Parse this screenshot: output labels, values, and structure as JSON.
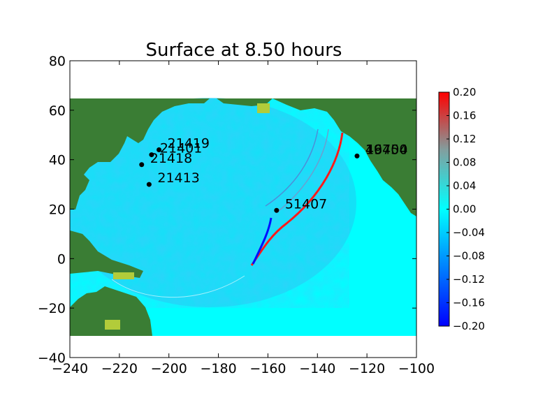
{
  "chart_data": {
    "type": "heatmap",
    "title": "Surface at 8.50 hours",
    "xlabel": "",
    "ylabel": "",
    "xlim": [
      -240,
      -100
    ],
    "ylim": [
      -40,
      80
    ],
    "x_ticks": [
      -240,
      -220,
      -200,
      -180,
      -160,
      -140,
      -120,
      -100
    ],
    "x_tick_labels": [
      "−240",
      "−220",
      "−200",
      "−180",
      "−160",
      "−140",
      "−120",
      "−100"
    ],
    "y_ticks": [
      -40,
      -20,
      0,
      20,
      40,
      60,
      80
    ],
    "y_tick_labels": [
      "−40",
      "−20",
      "0",
      "20",
      "40",
      "60",
      "80"
    ],
    "domain_extent": {
      "x": [
        -240,
        -100
      ],
      "y": [
        -31,
        65
      ]
    },
    "colorbar": {
      "range": [
        -0.2,
        0.2
      ],
      "ticks": [
        -0.2,
        -0.16,
        -0.12,
        -0.08,
        -0.04,
        0.0,
        0.04,
        0.08,
        0.12,
        0.16,
        0.2
      ],
      "tick_labels": [
        "−0.20",
        "−0.16",
        "−0.12",
        "−0.08",
        "−0.04",
        "0.00",
        "0.04",
        "0.08",
        "0.12",
        "0.16",
        "0.20"
      ],
      "colors": [
        "#0000ff",
        "#00ffff",
        "#ff0000"
      ]
    },
    "land_color": "#3a7d34",
    "water_color": "#00ffff",
    "gauges": [
      {
        "label": "21419",
        "x": -204,
        "y": 44
      },
      {
        "label": "21401",
        "x": -207,
        "y": 42
      },
      {
        "label": "21418",
        "x": -211,
        "y": 38
      },
      {
        "label": "21413",
        "x": -208,
        "y": 30
      },
      {
        "label": "51407",
        "x": -156.5,
        "y": 19.5
      },
      {
        "label": "46404",
        "x": -124,
        "y": 41.5
      },
      {
        "label": "19750",
        "x": -124,
        "y": 41.5
      },
      {
        "label": "1",
        "x": -124,
        "y": 41.5
      }
    ]
  }
}
